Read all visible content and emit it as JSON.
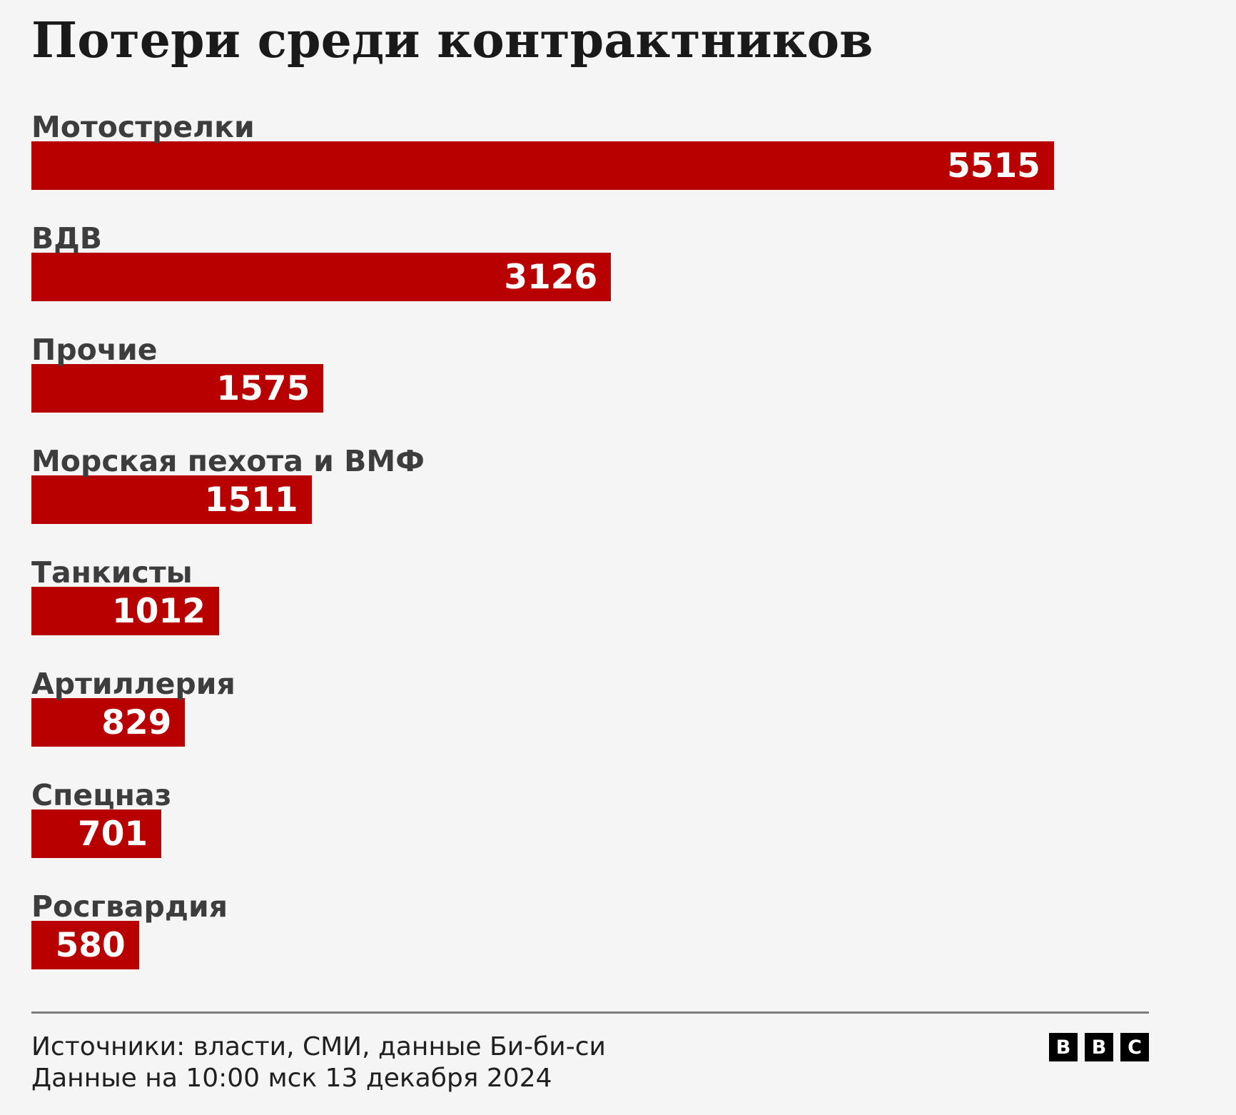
{
  "title": "Потери среди контрактников",
  "chart_data": {
    "type": "bar",
    "orientation": "horizontal",
    "title": "Потери среди контрактников",
    "categories": [
      "Мотострелки",
      "ВДВ",
      "Прочие",
      "Морская пехота и ВМФ",
      "Танкисты",
      "Артиллерия",
      "Спецназ",
      "Росгвардия"
    ],
    "values": [
      5515,
      3126,
      1575,
      1511,
      1012,
      829,
      701,
      580
    ],
    "value_labels": [
      "5515",
      "3126",
      "1575",
      "1511",
      "1012",
      "829",
      "701",
      "580"
    ],
    "xlabel": "",
    "ylabel": "",
    "grid": false,
    "legend": "none",
    "value_labels_position": "inside-end",
    "layout_hints": {
      "scale_max_value": 5515,
      "max_bar_width_pct": 91.5
    },
    "colors": {
      "bar": "#b80000",
      "value_label": "#ffffff",
      "category_label": "#3d3d3d",
      "title": "#1a1a1a",
      "background": "#f5f5f5",
      "rule": "#7d7d7d"
    }
  },
  "footer": {
    "sources_line": "Источники: власти, СМИ, данные Би-би-си",
    "updated_line": "Данные на 10:00 мск 13 декабря 2024"
  },
  "logo": {
    "name": "BBC",
    "letters": [
      "B",
      "B",
      "C"
    ]
  }
}
